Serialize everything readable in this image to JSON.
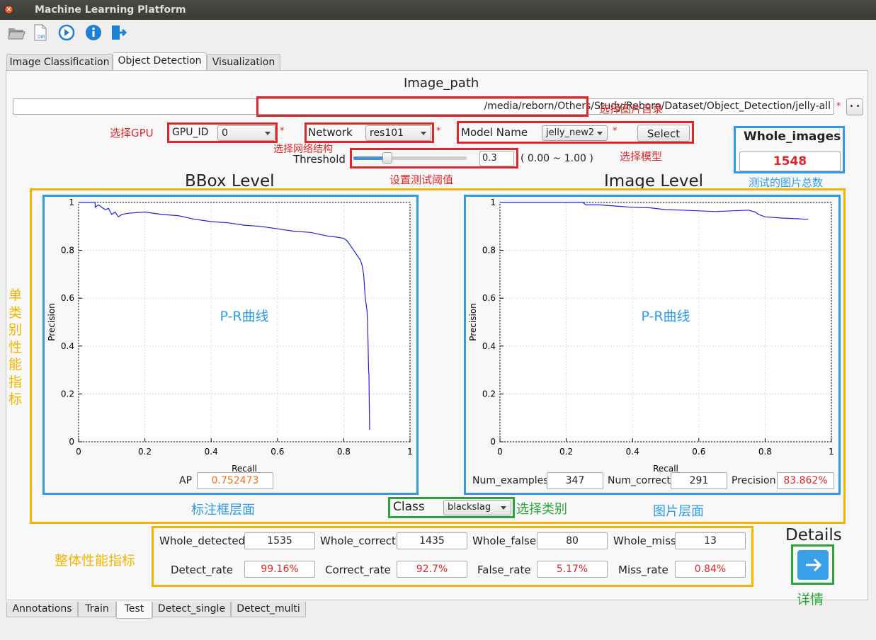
{
  "window": {
    "title": "Machine Learning Platform"
  },
  "toolbar": {
    "icons": [
      "open-folder-icon",
      "open-dir-icon",
      "run-icon",
      "info-icon",
      "exit-icon"
    ],
    "dir_badge": "DIR"
  },
  "tabs_top": [
    "Image Classification",
    "Object Detection",
    "Visualization"
  ],
  "tabs_top_active": "Object Detection",
  "image_path": {
    "title": "Image_path",
    "value": "/media/reborn/Others/Study/Reborn/Dataset/Object_Detection/jelly-all",
    "browse_label": "• •"
  },
  "settings": {
    "gpu_label": "GPU_ID",
    "gpu_value": "0",
    "network_label": "Network",
    "network_value": "res101",
    "model_label": "Model Name",
    "model_value": "jelly_new2",
    "select_label": "Select",
    "threshold_label": "Threshold",
    "threshold_value": "0.3",
    "threshold_range": "( 0.00 ~ 1.00 )",
    "threshold_slider_fraction": 0.3
  },
  "whole_images": {
    "label": "Whole_images",
    "value": "1548"
  },
  "annotations": {
    "select_dir": "选择图片目录",
    "select_gpu": "选择GPU",
    "select_network": "选择网络结构",
    "select_model": "选择模型",
    "set_threshold": "设置测试阈值",
    "total_images": "测试的图片总数",
    "single_class_metrics": [
      "单",
      "类",
      "别",
      "性",
      "能",
      "指",
      "标"
    ],
    "bbox_layer": "标注框层面",
    "image_layer": "图片层面",
    "select_class": "选择类别",
    "overall_metrics": "整体性能指标",
    "details": "详情",
    "pr_curve": "P-R曲线"
  },
  "bbox_panel": {
    "title": "BBox Level",
    "ap_label": "AP",
    "ap_value": "0.752473"
  },
  "image_panel": {
    "title": "Image Level",
    "num_examples_label": "Num_examples",
    "num_examples": "347",
    "num_correct_label": "Num_correct",
    "num_correct": "291",
    "precision_label": "Precision",
    "precision": "83.862%"
  },
  "class": {
    "label": "Class",
    "value": "blackslag"
  },
  "stats": {
    "whole_detected_label": "Whole_detected",
    "whole_detected": "1535",
    "whole_correct_label": "Whole_correct",
    "whole_correct": "1435",
    "whole_false_label": "Whole_false",
    "whole_false": "80",
    "whole_miss_label": "Whole_miss",
    "whole_miss": "13",
    "detect_rate_label": "Detect_rate",
    "detect_rate": "99.16%",
    "correct_rate_label": "Correct_rate",
    "correct_rate": "92.7%",
    "false_rate_label": "False_rate",
    "false_rate": "5.17%",
    "miss_rate_label": "Miss_rate",
    "miss_rate": "0.84%"
  },
  "details": {
    "label": "Details"
  },
  "tabs_bottom": [
    "Annotations",
    "Train",
    "Test",
    "Detect_single",
    "Detect_multi"
  ],
  "tabs_bottom_active": "Test",
  "colors": {
    "red": "#e0262a",
    "blue": "#2e9bea",
    "orange": "#f5b400",
    "green": "#2aa53a",
    "curve": "#2020e0"
  },
  "chart_data": [
    {
      "type": "line",
      "title": "BBox Level",
      "xlabel": "Recall",
      "ylabel": "Precision",
      "xlim": [
        0,
        1
      ],
      "ylim": [
        0,
        1
      ],
      "xticks": [
        "0",
        "0.2",
        "0.4",
        "0.6",
        "0.8",
        "1"
      ],
      "yticks": [
        "0",
        "0.2",
        "0.4",
        "0.6",
        "0.8",
        "1"
      ],
      "annotation": "P-R曲线",
      "series": [
        {
          "x": [
            0,
            0.05,
            0.05,
            0.06,
            0.08,
            0.09,
            0.1,
            0.11,
            0.12,
            0.13,
            0.15,
            0.2,
            0.25,
            0.3,
            0.35,
            0.4,
            0.45,
            0.5,
            0.55,
            0.6,
            0.65,
            0.7,
            0.75,
            0.78,
            0.8,
            0.81,
            0.82,
            0.83,
            0.84,
            0.85,
            0.855,
            0.86,
            0.865,
            0.87,
            0.872,
            0.875,
            0.876,
            0.878
          ],
          "y": [
            1,
            1,
            0.98,
            0.99,
            0.97,
            0.975,
            0.95,
            0.96,
            0.94,
            0.95,
            0.955,
            0.96,
            0.95,
            0.945,
            0.93,
            0.92,
            0.915,
            0.905,
            0.9,
            0.89,
            0.88,
            0.875,
            0.86,
            0.855,
            0.85,
            0.84,
            0.82,
            0.8,
            0.78,
            0.76,
            0.74,
            0.7,
            0.6,
            0.55,
            0.5,
            0.3,
            0.28,
            0.05
          ]
        }
      ]
    },
    {
      "type": "line",
      "title": "Image Level",
      "xlabel": "Recall",
      "ylabel": "Precision",
      "xlim": [
        0,
        1
      ],
      "ylim": [
        0,
        1
      ],
      "xticks": [
        "0",
        "0.2",
        "0.4",
        "0.6",
        "0.8",
        "1"
      ],
      "yticks": [
        "0",
        "0.2",
        "0.4",
        "0.6",
        "0.8",
        "1"
      ],
      "annotation": "P-R曲线",
      "series": [
        {
          "x": [
            0,
            0.1,
            0.2,
            0.25,
            0.26,
            0.3,
            0.35,
            0.4,
            0.45,
            0.5,
            0.55,
            0.6,
            0.65,
            0.7,
            0.75,
            0.77,
            0.78,
            0.8,
            0.85,
            0.9,
            0.92,
            0.93
          ],
          "y": [
            1,
            1,
            1,
            1,
            0.99,
            0.99,
            0.985,
            0.98,
            0.978,
            0.97,
            0.968,
            0.965,
            0.962,
            0.965,
            0.968,
            0.96,
            0.95,
            0.94,
            0.935,
            0.932,
            0.93,
            0.93
          ]
        }
      ]
    }
  ]
}
